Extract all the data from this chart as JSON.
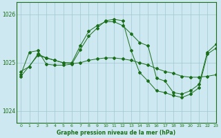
{
  "title": "Graphe pression niveau de la mer (hPa)",
  "bg_color": "#cde8f0",
  "line_color": "#1a6e1a",
  "grid_color": "#a0c8d0",
  "xlim": [
    -0.5,
    23
  ],
  "ylim": [
    1023.75,
    1026.25
  ],
  "yticks": [
    1024,
    1025,
    1026
  ],
  "xticks": [
    0,
    1,
    2,
    3,
    4,
    5,
    6,
    7,
    8,
    9,
    10,
    11,
    12,
    13,
    14,
    15,
    16,
    17,
    18,
    19,
    20,
    21,
    22,
    23
  ],
  "line1_x": [
    0,
    1,
    2,
    3,
    4,
    5,
    6,
    7,
    8,
    9,
    10,
    11,
    12,
    13,
    14,
    15,
    16,
    17,
    18,
    19,
    20,
    21,
    22,
    23
  ],
  "line1_y": [
    1024.76,
    1025.22,
    1025.25,
    1024.97,
    1024.95,
    1024.95,
    1024.97,
    1025.27,
    1025.55,
    1025.72,
    1025.87,
    1025.9,
    1025.87,
    1025.25,
    1024.8,
    1024.62,
    1024.42,
    1024.38,
    1024.32,
    1024.28,
    1024.35,
    1024.48,
    1025.18,
    1025.3
  ],
  "line2_x": [
    0,
    1,
    2,
    3,
    4,
    5,
    6,
    7,
    8,
    9,
    10,
    11,
    12,
    13,
    14,
    15,
    16,
    17,
    18,
    19,
    20,
    21,
    22,
    23
  ],
  "line2_y": [
    1024.82,
    1024.92,
    1025.18,
    1025.1,
    1025.05,
    1025.0,
    1024.98,
    1025.0,
    1025.05,
    1025.08,
    1025.1,
    1025.1,
    1025.08,
    1025.05,
    1025.0,
    1024.95,
    1024.88,
    1024.82,
    1024.78,
    1024.72,
    1024.7,
    1024.7,
    1024.72,
    1024.75
  ],
  "line3_x": [
    0,
    2,
    3,
    4,
    5,
    6,
    7,
    8,
    9,
    10,
    11,
    12,
    13,
    14,
    15,
    16,
    17,
    18,
    19,
    20,
    21,
    22,
    23
  ],
  "line3_y": [
    1024.72,
    1025.15,
    1025.1,
    1025.05,
    1025.0,
    1025.0,
    1025.35,
    1025.65,
    1025.77,
    1025.85,
    1025.85,
    1025.77,
    1025.6,
    1025.42,
    1025.35,
    1024.68,
    1024.62,
    1024.38,
    1024.35,
    1024.42,
    1024.55,
    1025.22,
    1025.38
  ]
}
